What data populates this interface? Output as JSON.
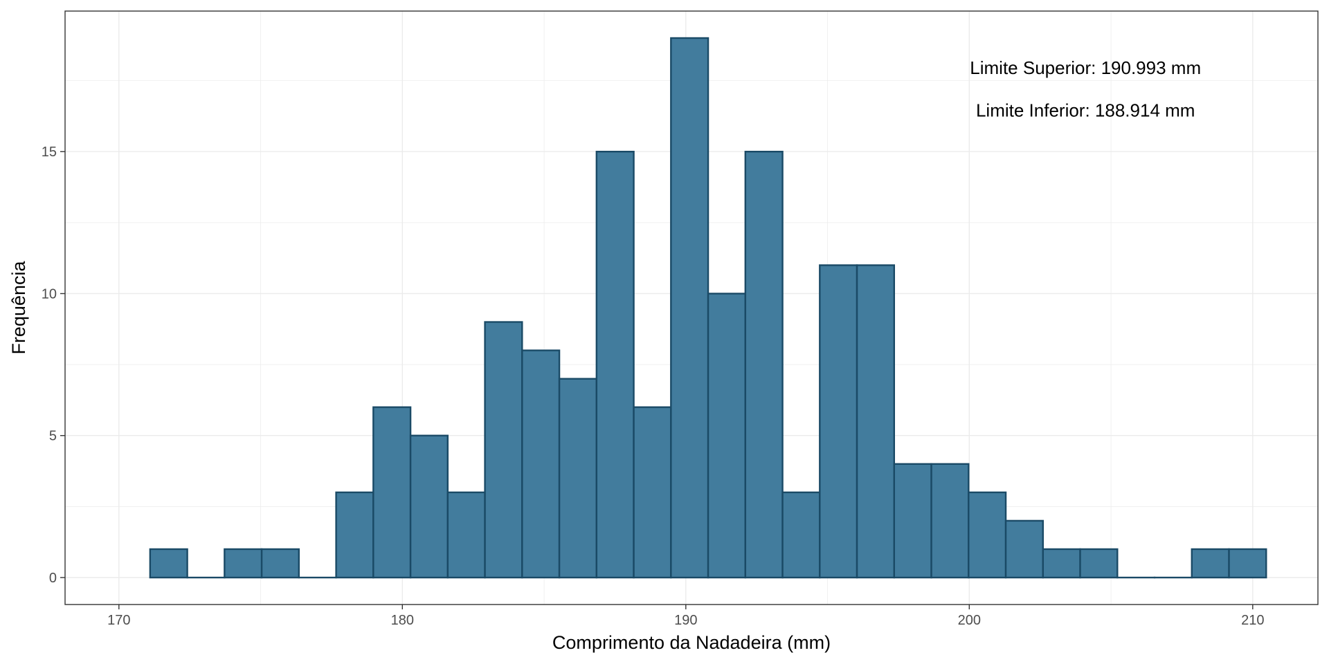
{
  "chart_data": {
    "type": "bar",
    "subtype": "histogram",
    "xlabel": "Comprimento da Nadadeira (mm)",
    "ylabel": "Frequência",
    "xlim": [
      168.1,
      212.3
    ],
    "ylim": [
      -0.95,
      19.95
    ],
    "xticks": [
      170,
      180,
      190,
      200,
      210
    ],
    "yticks": [
      0,
      5,
      10,
      15
    ],
    "bin_start": 171.1,
    "bin_width": 1.3125,
    "bins": [
      {
        "x0": 171.1,
        "x1": 172.4125,
        "count": 1
      },
      {
        "x0": 172.4125,
        "x1": 173.725,
        "count": 0
      },
      {
        "x0": 173.725,
        "x1": 175.0375,
        "count": 1
      },
      {
        "x0": 175.0375,
        "x1": 176.35,
        "count": 1
      },
      {
        "x0": 176.35,
        "x1": 177.6625,
        "count": 0
      },
      {
        "x0": 177.6625,
        "x1": 178.975,
        "count": 3
      },
      {
        "x0": 178.975,
        "x1": 180.2875,
        "count": 6
      },
      {
        "x0": 180.2875,
        "x1": 181.6,
        "count": 5
      },
      {
        "x0": 181.6,
        "x1": 182.9125,
        "count": 3
      },
      {
        "x0": 182.9125,
        "x1": 184.225,
        "count": 9
      },
      {
        "x0": 184.225,
        "x1": 185.5375,
        "count": 8
      },
      {
        "x0": 185.5375,
        "x1": 186.85,
        "count": 7
      },
      {
        "x0": 186.85,
        "x1": 188.1625,
        "count": 15
      },
      {
        "x0": 188.1625,
        "x1": 189.475,
        "count": 6
      },
      {
        "x0": 189.475,
        "x1": 190.7875,
        "count": 19
      },
      {
        "x0": 190.7875,
        "x1": 192.1,
        "count": 10
      },
      {
        "x0": 192.1,
        "x1": 193.4125,
        "count": 15
      },
      {
        "x0": 193.4125,
        "x1": 194.725,
        "count": 3
      },
      {
        "x0": 194.725,
        "x1": 196.0375,
        "count": 11
      },
      {
        "x0": 196.0375,
        "x1": 197.35,
        "count": 11
      },
      {
        "x0": 197.35,
        "x1": 198.6625,
        "count": 4
      },
      {
        "x0": 198.6625,
        "x1": 199.975,
        "count": 4
      },
      {
        "x0": 199.975,
        "x1": 201.2875,
        "count": 3
      },
      {
        "x0": 201.2875,
        "x1": 202.6,
        "count": 2
      },
      {
        "x0": 202.6,
        "x1": 203.9125,
        "count": 1
      },
      {
        "x0": 203.9125,
        "x1": 205.225,
        "count": 1
      },
      {
        "x0": 205.225,
        "x1": 206.5375,
        "count": 0
      },
      {
        "x0": 206.5375,
        "x1": 207.85,
        "count": 0
      },
      {
        "x0": 207.85,
        "x1": 209.1625,
        "count": 1
      },
      {
        "x0": 209.1625,
        "x1": 210.475,
        "count": 1
      }
    ],
    "annotations": [
      "Limite Superior: 190.993 mm",
      "Limite Inferior: 188.914 mm"
    ],
    "grid": true,
    "colors": {
      "bar_fill": "#427c9d",
      "bar_stroke": "#1a4a66",
      "grid": "#ebebeb",
      "panel_border": "#333333"
    }
  }
}
